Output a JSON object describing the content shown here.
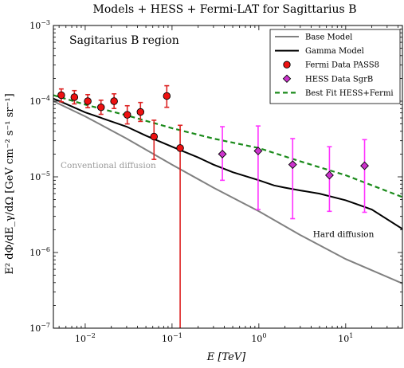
{
  "chart_data": {
    "type": "scatter",
    "title": "Models + HESS + Fermi-LAT for Sagittarius B",
    "xlabel": "E [TeV]",
    "ylabel": "E² dΦ/dE_γ/dΩ [GeV cm⁻² s⁻¹ sr⁻¹]",
    "x_scale": "log",
    "y_scale": "log",
    "xlim": [
      0.0043,
      45
    ],
    "ylim": [
      1e-07,
      0.001
    ],
    "x_ticks": [
      {
        "value": 0.01,
        "base": "10",
        "exp": "−2"
      },
      {
        "value": 0.1,
        "base": "10",
        "exp": "−1"
      },
      {
        "value": 1,
        "base": "10",
        "exp": "0"
      },
      {
        "value": 10,
        "base": "10",
        "exp": "1"
      }
    ],
    "y_ticks": [
      {
        "value": 1e-07,
        "base": "10",
        "exp": "−7"
      },
      {
        "value": 1e-06,
        "base": "10",
        "exp": "−6"
      },
      {
        "value": 1e-05,
        "base": "10",
        "exp": "−5"
      },
      {
        "value": 0.0001,
        "base": "10",
        "exp": "−4"
      },
      {
        "value": 0.001,
        "base": "10",
        "exp": "−3"
      }
    ],
    "grid": false,
    "legend_position": "top-right",
    "region_label": "Sagitarius B region",
    "annotations": [
      {
        "text": "Conventional diffusion",
        "x": 0.0052,
        "y": 1.3e-05,
        "color": "#9a9a9a"
      },
      {
        "text": "Hard diffusion",
        "x": 4.2,
        "y": 1.6e-06,
        "color": "#000000"
      }
    ],
    "series": [
      {
        "name": "Base Model",
        "kind": "line",
        "color": "#808080",
        "dash": "",
        "width": 2,
        "x": [
          0.0043,
          0.01,
          0.03,
          0.1,
          0.3,
          1,
          3,
          10,
          45
        ],
        "y": [
          0.0001,
          6.3e-05,
          3.2e-05,
          1.45e-05,
          7.2e-06,
          3.5e-06,
          1.7e-06,
          8.2e-07,
          3.9e-07
        ]
      },
      {
        "name": "Gamma Model",
        "kind": "line",
        "color": "#000000",
        "dash": "",
        "width": 2,
        "x": [
          0.0043,
          0.006,
          0.01,
          0.02,
          0.03,
          0.05,
          0.1,
          0.2,
          0.3,
          0.5,
          1,
          1.5,
          2,
          3,
          5,
          10,
          20,
          45
        ],
        "y": [
          0.000108,
          9.2e-05,
          7.1e-05,
          5.4e-05,
          4.6e-05,
          3.5e-05,
          2.5e-05,
          1.8e-05,
          1.45e-05,
          1.15e-05,
          9e-06,
          7.7e-06,
          7.2e-06,
          6.6e-06,
          6e-06,
          4.9e-06,
          3.7e-06,
          2.05e-06
        ]
      },
      {
        "name": "Fermi Data PASS8",
        "kind": "points",
        "marker": "circle",
        "color": "#ee1111",
        "errcolor": "#dd2222",
        "points": [
          {
            "x": 0.0053,
            "y": 0.00012,
            "ylo": 9.8e-05,
            "yhi": 0.000145
          },
          {
            "x": 0.0075,
            "y": 0.000113,
            "ylo": 9.2e-05,
            "yhi": 0.000138
          },
          {
            "x": 0.0107,
            "y": 0.0001,
            "ylo": 8.2e-05,
            "yhi": 0.000122
          },
          {
            "x": 0.0152,
            "y": 8.3e-05,
            "ylo": 6.7e-05,
            "yhi": 0.000103
          },
          {
            "x": 0.0215,
            "y": 0.0001,
            "ylo": 8e-05,
            "yhi": 0.000125
          },
          {
            "x": 0.0305,
            "y": 6.6e-05,
            "ylo": 5e-05,
            "yhi": 8.7e-05
          },
          {
            "x": 0.0433,
            "y": 7.2e-05,
            "ylo": 5.4e-05,
            "yhi": 9.6e-05
          },
          {
            "x": 0.062,
            "y": 3.4e-05,
            "ylo": 1.7e-05,
            "yhi": 5.6e-05
          },
          {
            "x": 0.087,
            "y": 0.000117,
            "ylo": 8.3e-05,
            "yhi": 0.00016
          },
          {
            "x": 0.124,
            "y": 2.4e-05,
            "ylo": 1e-07,
            "yhi": 4.8e-05
          }
        ]
      },
      {
        "name": "HESS Data SgrB",
        "kind": "points",
        "marker": "diamond",
        "color": "#cc33cc",
        "errcolor": "#ff33ff",
        "points": [
          {
            "x": 0.38,
            "y": 2e-05,
            "ylo": 9e-06,
            "yhi": 4.6e-05
          },
          {
            "x": 0.98,
            "y": 2.2e-05,
            "ylo": 3.7e-06,
            "yhi": 4.7e-05
          },
          {
            "x": 2.45,
            "y": 1.45e-05,
            "ylo": 2.8e-06,
            "yhi": 3.2e-05
          },
          {
            "x": 6.5,
            "y": 1.05e-05,
            "ylo": 3.5e-06,
            "yhi": 2.5e-05
          },
          {
            "x": 16.5,
            "y": 1.4e-05,
            "ylo": 3.4e-06,
            "yhi": 3.1e-05
          }
        ]
      },
      {
        "name": "Best Fit HESS+Fermi",
        "kind": "line",
        "color": "#1a8a1a",
        "dash": "6,4",
        "width": 2.2,
        "x": [
          0.0043,
          0.01,
          0.03,
          0.1,
          0.3,
          1,
          3,
          10,
          45
        ],
        "y": [
          0.00012,
          9e-05,
          6.5e-05,
          4.4e-05,
          3.2e-05,
          2.4e-05,
          1.6e-05,
          1.05e-05,
          5.4e-06
        ]
      }
    ]
  }
}
